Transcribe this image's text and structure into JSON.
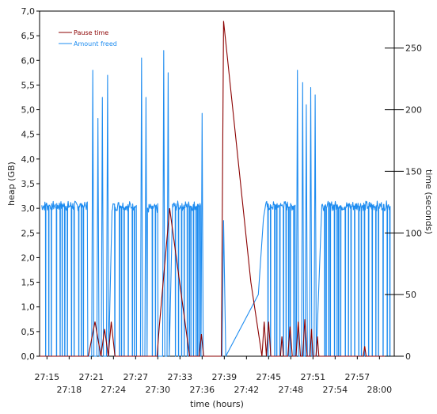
{
  "chart_data": {
    "type": "line",
    "xlabel": "time (hours)",
    "ylabel_left": "heap (GB)",
    "ylabel_right": "time (seconds)",
    "x_ticks_top_row": [
      "27:15",
      "27:21",
      "27:27",
      "27:33",
      "27:39",
      "27:45",
      "27:51",
      "27:57"
    ],
    "x_ticks_bottom_row": [
      "27:18",
      "27:24",
      "27:30",
      "27:36",
      "27:42",
      "27:48",
      "27:54",
      "28:00"
    ],
    "x_range_minutes": [
      1634,
      1682
    ],
    "y_left_ticks": [
      "0,0",
      "0,5",
      "1,0",
      "1,5",
      "2,0",
      "2,5",
      "3,0",
      "3,5",
      "4,0",
      "4,5",
      "5,0",
      "5,5",
      "6,0",
      "6,5",
      "7,0"
    ],
    "y_left_range": [
      0,
      7.0
    ],
    "y_right_ticks": [
      "0",
      "50",
      "100",
      "150",
      "200",
      "250"
    ],
    "y_right_range": [
      0,
      280
    ],
    "grid": false,
    "legend_position": "top-left",
    "series": [
      {
        "name": "Pause time",
        "axis": "left",
        "color": "#8b0000",
        "points": [
          [
            1634.0,
            0.0
          ],
          [
            1640.6,
            0.0
          ],
          [
            1641.5,
            0.7
          ],
          [
            1642.3,
            0.0
          ],
          [
            1642.8,
            0.55
          ],
          [
            1643.3,
            0.0
          ],
          [
            1643.7,
            0.7
          ],
          [
            1644.2,
            0.0
          ],
          [
            1649.9,
            0.0
          ],
          [
            1650.2,
            0.6
          ],
          [
            1651.6,
            3.0
          ],
          [
            1654.3,
            0.0
          ],
          [
            1655.6,
            0.0
          ],
          [
            1655.9,
            0.45
          ],
          [
            1656.2,
            0.0
          ],
          [
            1658.6,
            0.0
          ],
          [
            1658.9,
            6.8
          ],
          [
            1662.6,
            1.5
          ],
          [
            1664.1,
            0.0
          ],
          [
            1664.4,
            0.7
          ],
          [
            1664.7,
            0.0
          ],
          [
            1665.0,
            0.7
          ],
          [
            1665.3,
            0.0
          ],
          [
            1666.6,
            0.0
          ],
          [
            1666.8,
            0.4
          ],
          [
            1667.0,
            0.0
          ],
          [
            1667.6,
            0.0
          ],
          [
            1667.9,
            0.6
          ],
          [
            1668.2,
            0.0
          ],
          [
            1668.7,
            0.0
          ],
          [
            1669.0,
            0.7
          ],
          [
            1669.3,
            0.0
          ],
          [
            1669.6,
            0.0
          ],
          [
            1669.9,
            0.75
          ],
          [
            1670.2,
            0.0
          ],
          [
            1670.6,
            0.0
          ],
          [
            1670.8,
            0.55
          ],
          [
            1671.0,
            0.0
          ],
          [
            1671.4,
            0.0
          ],
          [
            1671.6,
            0.4
          ],
          [
            1671.8,
            0.0
          ],
          [
            1677.8,
            0.0
          ],
          [
            1678.0,
            0.2
          ],
          [
            1678.2,
            0.0
          ],
          [
            1682.0,
            0.0
          ]
        ]
      },
      {
        "name": "Amount freed",
        "axis": "right",
        "color": "#1e8cf0",
        "segments": [
          {
            "type": "noise",
            "start": 1634.3,
            "end": 1640.5,
            "base": 122,
            "amp": 4,
            "drop_every": 0.45
          },
          {
            "type": "peak",
            "at": 1641.2,
            "value": 232
          },
          {
            "type": "peak",
            "at": 1641.9,
            "value": 193
          },
          {
            "type": "peak",
            "at": 1642.5,
            "value": 210
          },
          {
            "type": "peak",
            "at": 1643.2,
            "value": 228
          },
          {
            "type": "noise",
            "start": 1643.8,
            "end": 1647.1,
            "base": 122,
            "amp": 4,
            "drop_every": 0.45
          },
          {
            "type": "peak",
            "at": 1647.8,
            "value": 242
          },
          {
            "type": "peak",
            "at": 1648.4,
            "value": 210
          },
          {
            "type": "noise",
            "start": 1648.6,
            "end": 1650.0,
            "base": 120,
            "amp": 4,
            "drop_every": 0.4
          },
          {
            "type": "peak",
            "at": 1650.8,
            "value": 248
          },
          {
            "type": "peak",
            "at": 1651.4,
            "value": 230
          },
          {
            "type": "noise",
            "start": 1652.0,
            "end": 1655.8,
            "base": 122,
            "amp": 4,
            "drop_every": 0.3
          },
          {
            "type": "peak",
            "at": 1656.0,
            "value": 197
          },
          {
            "type": "ramp",
            "points": [
              [
                1658.7,
                0
              ],
              [
                1658.9,
                110
              ],
              [
                1659.2,
                0
              ],
              [
                1663.6,
                50
              ],
              [
                1664.3,
                112
              ]
            ]
          },
          {
            "type": "noise",
            "start": 1664.6,
            "end": 1668.6,
            "base": 122,
            "amp": 4,
            "drop_every": 0.35
          },
          {
            "type": "peak",
            "at": 1668.9,
            "value": 232
          },
          {
            "type": "peak",
            "at": 1669.6,
            "value": 222
          },
          {
            "type": "peak",
            "at": 1670.1,
            "value": 204
          },
          {
            "type": "peak",
            "at": 1670.7,
            "value": 218
          },
          {
            "type": "peak",
            "at": 1671.3,
            "value": 212
          },
          {
            "type": "noise",
            "start": 1672.2,
            "end": 1681.4,
            "base": 122,
            "amp": 4,
            "drop_every": 0.4
          }
        ]
      }
    ]
  }
}
